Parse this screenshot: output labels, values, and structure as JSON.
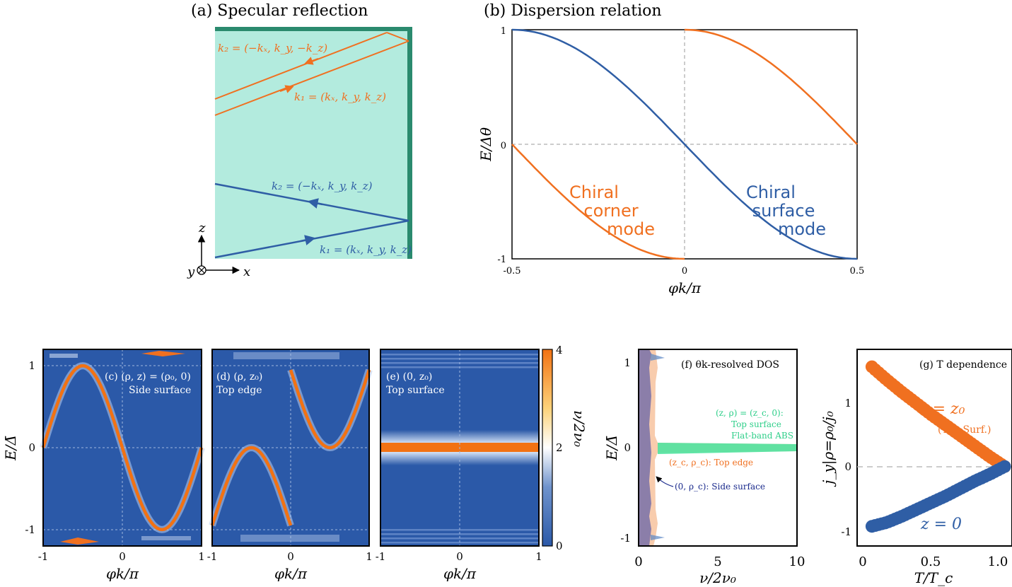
{
  "colors": {
    "orange": "#f07020",
    "blue": "#2f5ea5",
    "teal_bg": "#b3ebde",
    "teal_wall": "#2a8a6e",
    "heat_low": "#2b59a8",
    "heat_mid": "#ffffff",
    "heat_high": "#f27213",
    "green_abs": "#4fe3a0",
    "navy": "#1a2a8c"
  },
  "panel_a": {
    "title": "(a) Specular reflection",
    "orange_k2": "k₂ = (−kₓ, k_y, −k_z)",
    "orange_k1": "k₁ = (kₓ, k_y, k_z)",
    "blue_k2": "k₂ = (−kₓ, k_y, k_z)",
    "blue_k1": "k₁ = (kₓ, k_y, k_z)",
    "axis_z": "z",
    "axis_y": "y",
    "axis_x": "x"
  },
  "chart_data": [
    {
      "id": "b",
      "type": "line",
      "title": "(b) Dispersion relation",
      "xlabel": "φk/π",
      "ylabel": "E/Δθ",
      "xlim": [
        -0.5,
        0.5
      ],
      "ylim": [
        -1,
        1
      ],
      "xticks": [
        "-0.5",
        "0",
        "0.5"
      ],
      "yticks": [
        "-1",
        "0",
        "1"
      ],
      "series": [
        {
          "label": "Chiral surface mode",
          "color": "blue",
          "x": [
            -0.5,
            -0.375,
            -0.25,
            -0.125,
            0,
            0.125,
            0.25,
            0.375,
            0.5
          ],
          "y": [
            1,
            0.92,
            0.71,
            0.38,
            0,
            -0.38,
            -0.71,
            -0.92,
            -1
          ]
        },
        {
          "label": "Chiral corner mode",
          "color": "orange",
          "x": [
            -0.5,
            -0.375,
            -0.25,
            -0.125,
            0
          ],
          "y": [
            0,
            -0.38,
            -0.71,
            -0.92,
            -1
          ]
        },
        {
          "label": "Chiral corner mode",
          "color": "orange",
          "x": [
            0,
            0.125,
            0.25,
            0.375,
            0.5
          ],
          "y": [
            1,
            0.92,
            0.71,
            0.38,
            0
          ]
        }
      ],
      "annotations": {
        "corner": [
          "Chiral",
          "corner",
          "mode"
        ],
        "surface": [
          "Chiral",
          "surface",
          "mode"
        ]
      }
    },
    {
      "id": "c",
      "type": "heatmap",
      "label": "(c) (ρ, z) = (ρ₀, 0)",
      "sublabel": "Side surface",
      "xlabel": "φk/π",
      "ylabel": "E/Δ̄",
      "xlim": [
        -1,
        1
      ],
      "ylim": [
        -1.2,
        1.2
      ],
      "xticks": [
        "-1",
        "0",
        "1"
      ],
      "yticks": [
        "-1",
        "0",
        "1"
      ],
      "band": {
        "x": [
          -1,
          -0.75,
          -0.5,
          -0.25,
          0,
          0.25,
          0.5,
          0.75,
          1
        ],
        "y": [
          0,
          0.68,
          1.0,
          0.68,
          0,
          -0.68,
          -1.0,
          -0.68,
          0
        ]
      }
    },
    {
      "id": "d",
      "type": "heatmap",
      "label": "(d) (ρ, z₀)",
      "sublabel": "Top edge",
      "xlabel": "φk/π",
      "xlim": [
        -1,
        1
      ],
      "ylim": [
        -1.2,
        1.2
      ],
      "xticks": [
        "-1",
        "0",
        "1"
      ],
      "bands": [
        {
          "x": [
            -1,
            -0.75,
            -0.5,
            -0.25,
            0
          ],
          "y": [
            -0.95,
            -0.45,
            0,
            -0.45,
            -0.95
          ]
        },
        {
          "x": [
            0,
            0.25,
            0.5,
            0.75,
            1
          ],
          "y": [
            0.95,
            0.45,
            0,
            0.45,
            0.95
          ]
        }
      ]
    },
    {
      "id": "e",
      "type": "heatmap",
      "label": "(e) (0, z₀)",
      "sublabel": "Top surface",
      "xlabel": "φk/π",
      "xlim": [
        -1,
        1
      ],
      "ylim": [
        -1.2,
        1.2
      ],
      "xticks": [
        "-1",
        "0",
        "1"
      ],
      "flat_band": 0
    },
    {
      "id": "colorbar",
      "label": "ν/2ν₀",
      "ticks": [
        "0",
        "2",
        "4"
      ],
      "range": [
        0,
        4
      ]
    },
    {
      "id": "f",
      "type": "area",
      "title": "(f) θk-resolved DOS",
      "xlabel": "ν/2ν₀",
      "ylabel": "E/Δ̄",
      "xlim": [
        0,
        10
      ],
      "ylim": [
        -1.2,
        1.2
      ],
      "xticks": [
        "0",
        "5",
        "10"
      ],
      "yticks": [
        "-1",
        "0",
        "1"
      ],
      "legend": {
        "green_l1": "(z, ρ) = (z_c, 0):",
        "green_l2": "Top surface",
        "green_l3": "Flat-band ABS",
        "orange": "(z_c, ρ_c): Top edge",
        "navy": "(0, ρ_c): Side surface"
      }
    },
    {
      "id": "g",
      "type": "scatter",
      "title": "(g) T dependence",
      "xlabel": "T/T_c",
      "ylabel": "j_y|ρ=ρ₀/j₀",
      "xlim": [
        0,
        1.05
      ],
      "ylim": [
        -1.05,
        1.55
      ],
      "xticks": [
        "0",
        "0.5",
        "1.0"
      ],
      "yticks": [
        "-1",
        "0",
        "1"
      ],
      "series": [
        {
          "label": "z = z₀",
          "sublabel": "(Top Surf.)",
          "color": "orange",
          "x": [
            0.1,
            0.2,
            0.3,
            0.4,
            0.5,
            0.6,
            0.7,
            0.8,
            0.9,
            1.0
          ],
          "y": [
            1.32,
            1.15,
            0.99,
            0.84,
            0.69,
            0.55,
            0.41,
            0.27,
            0.13,
            0.0
          ]
        },
        {
          "label": "z = 0",
          "color": "blue",
          "x": [
            0.1,
            0.2,
            0.3,
            0.4,
            0.5,
            0.6,
            0.7,
            0.8,
            0.9,
            1.0
          ],
          "y": [
            -0.79,
            -0.74,
            -0.66,
            -0.57,
            -0.48,
            -0.39,
            -0.29,
            -0.19,
            -0.1,
            0.0
          ]
        }
      ]
    }
  ]
}
